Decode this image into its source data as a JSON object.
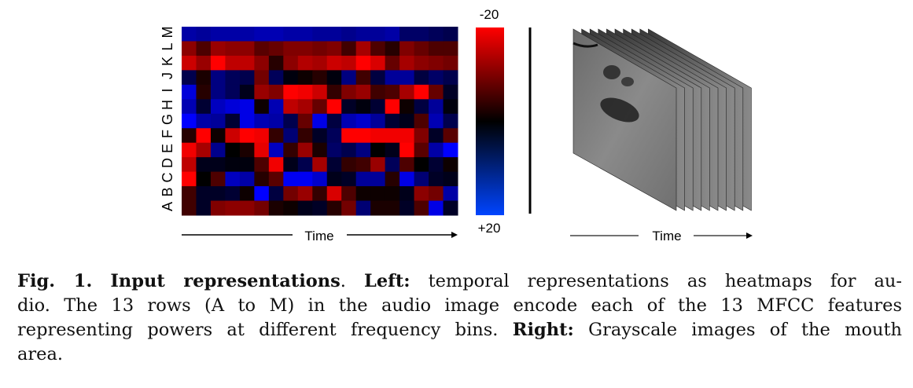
{
  "figure": {
    "row_labels": [
      "A",
      "B",
      "C",
      "D",
      "E",
      "F",
      "G",
      "H",
      "I",
      "J",
      "K",
      "L",
      "M"
    ],
    "time_label": "Time",
    "colorbar": {
      "top_label": "-20",
      "bottom_label": "+20",
      "min_color": "#ff0000",
      "mid_color": "#000000",
      "max_color": "#0000ff"
    },
    "frame_count": 10
  },
  "chart_data": {
    "type": "heatmap",
    "title": "",
    "xlabel": "Time",
    "ylabel": "",
    "rows_top_to_bottom": [
      "M",
      "L",
      "K",
      "J",
      "I",
      "H",
      "G",
      "F",
      "E",
      "D",
      "C",
      "B",
      "A"
    ],
    "columns": 19,
    "range": [
      -20,
      20
    ],
    "values": [
      [
        13,
        12,
        13,
        13,
        13,
        14,
        14,
        13,
        13,
        12,
        12,
        11,
        12,
        12,
        13,
        8,
        8,
        7,
        6
      ],
      [
        -11,
        -6,
        -12,
        -11,
        -11,
        -7,
        -8,
        -10,
        -10,
        -9,
        -10,
        -5,
        -13,
        -6,
        -3,
        -10,
        -8,
        -6,
        -6
      ],
      [
        -16,
        -12,
        -20,
        -15,
        -15,
        -11,
        -3,
        -11,
        -14,
        -13,
        -16,
        -15,
        -20,
        -17,
        -8,
        -13,
        -11,
        -10,
        -9
      ],
      [
        6,
        -2,
        10,
        7,
        6,
        -9,
        7,
        1,
        -1,
        -3,
        1,
        10,
        -5,
        5,
        12,
        12,
        5,
        8,
        6
      ],
      [
        17,
        -3,
        10,
        7,
        2,
        -12,
        -10,
        -20,
        -19,
        -16,
        -4,
        -10,
        -12,
        -5,
        -6,
        -13,
        -20,
        -8,
        3
      ],
      [
        14,
        4,
        15,
        17,
        18,
        -1,
        14,
        -15,
        -13,
        -8,
        -20,
        3,
        1,
        4,
        -20,
        -1,
        5,
        12,
        1
      ],
      [
        20,
        13,
        12,
        4,
        18,
        14,
        13,
        6,
        -8,
        18,
        5,
        14,
        16,
        12,
        4,
        2,
        -6,
        14,
        6
      ],
      [
        -3,
        -20,
        -1,
        -16,
        -20,
        -19,
        -4,
        9,
        -4,
        3,
        7,
        -20,
        -20,
        -19,
        -19,
        -19,
        -10,
        3,
        -7
      ],
      [
        -19,
        -13,
        11,
        0,
        -2,
        -18,
        15,
        -4,
        -12,
        -2,
        8,
        6,
        10,
        0,
        2,
        -20,
        -7,
        13,
        20
      ],
      [
        -15,
        2,
        2,
        1,
        1,
        -6,
        -19,
        2,
        6,
        -13,
        4,
        -4,
        -5,
        -12,
        7,
        -6,
        0,
        4,
        -1
      ],
      [
        -20,
        0,
        -6,
        15,
        13,
        -3,
        -7,
        19,
        19,
        16,
        2,
        3,
        12,
        12,
        -3,
        18,
        9,
        3,
        2
      ],
      [
        -5,
        3,
        3,
        4,
        -1,
        20,
        5,
        -9,
        -12,
        -4,
        -17,
        -6,
        -1,
        -1,
        -1,
        2,
        -11,
        -9,
        13
      ],
      [
        -5,
        3,
        -10,
        -11,
        -11,
        -9,
        -2,
        -1,
        2,
        3,
        -3,
        -9,
        9,
        -2,
        -2,
        3,
        -6,
        18,
        3
      ]
    ]
  },
  "caption": {
    "fig_label": "Fig. 1.",
    "title": "Input representations",
    "left_label": "Left:",
    "line1_rest": "temporal representations as heatmaps for au-",
    "line2": "dio. The 13 rows (A to M) in the audio image encode each of the 13 MFCC features",
    "line3_start": "representing powers at different frequency bins.",
    "right_label": "Right:",
    "line3_rest": "Grayscale images of the mouth",
    "line4": "area."
  }
}
